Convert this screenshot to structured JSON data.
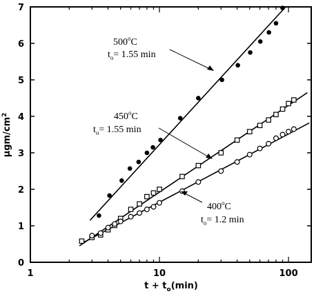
{
  "chart_data": {
    "type": "scatter",
    "x_scale": "log",
    "xlim": [
      1,
      150
    ],
    "ylim": [
      0,
      7
    ],
    "xlabel_main": "t + t",
    "xlabel_sub": "o",
    "xlabel_tail": "(min)",
    "ylabel_pre": "μgm/cm",
    "ylabel_sup": "2",
    "x_ticks": [
      {
        "value": 1,
        "label": "1"
      },
      {
        "value": 10,
        "label": "10"
      },
      {
        "value": 100,
        "label": "100"
      }
    ],
    "y_ticks": [
      {
        "value": 0,
        "label": "0"
      },
      {
        "value": 1,
        "label": "1"
      },
      {
        "value": 2,
        "label": "2"
      },
      {
        "value": 3,
        "label": "3"
      },
      {
        "value": 4,
        "label": "4"
      },
      {
        "value": 5,
        "label": "5"
      },
      {
        "value": 6,
        "label": "6"
      },
      {
        "value": 7,
        "label": "7"
      }
    ],
    "grid": false,
    "series": [
      {
        "name": "500°C",
        "marker": "filled-circle",
        "x": [
          3.4,
          4.1,
          5.1,
          5.9,
          6.9,
          8.0,
          8.9,
          10.2,
          14.5,
          20.0,
          30.5,
          40.5,
          50.5,
          60.5,
          70.5,
          80.0,
          90.0
        ],
        "y": [
          1.28,
          1.83,
          2.24,
          2.57,
          2.75,
          3.0,
          3.15,
          3.35,
          3.95,
          4.5,
          5.0,
          5.4,
          5.75,
          6.05,
          6.3,
          6.55,
          6.97
        ],
        "fit": {
          "x": [
            2.9,
            95
          ],
          "y": [
            1.15,
            7.0
          ]
        }
      },
      {
        "name": "450°C",
        "marker": "open-square",
        "x": [
          2.5,
          3.0,
          3.5,
          4.0,
          4.5,
          5.0,
          6.0,
          7.0,
          8.0,
          9.0,
          10.0,
          15.0,
          20.0,
          30.0,
          40.0,
          50.0,
          60.0,
          70.0,
          80.0,
          90.0,
          100.0,
          110.0
        ],
        "y": [
          0.58,
          0.68,
          0.75,
          0.89,
          1.01,
          1.2,
          1.45,
          1.6,
          1.8,
          1.9,
          2.0,
          2.35,
          2.65,
          3.0,
          3.35,
          3.58,
          3.75,
          3.9,
          4.05,
          4.2,
          4.35,
          4.45
        ],
        "fit": {
          "x": [
            2.4,
            140
          ],
          "y": [
            0.45,
            4.65
          ]
        }
      },
      {
        "name": "400°C",
        "marker": "open-circle",
        "x": [
          3.0,
          3.5,
          4.0,
          4.5,
          5.0,
          6.0,
          7.0,
          8.0,
          9.0,
          10.0,
          15.0,
          20.0,
          30.0,
          40.0,
          50.0,
          60.0,
          70.0,
          80.0,
          90.0,
          100.0,
          110.0
        ],
        "y": [
          0.73,
          0.8,
          0.95,
          1.05,
          1.12,
          1.25,
          1.35,
          1.45,
          1.52,
          1.63,
          1.95,
          2.2,
          2.5,
          2.75,
          2.95,
          3.12,
          3.25,
          3.4,
          3.5,
          3.58,
          3.65
        ],
        "fit": {
          "x": [
            2.6,
            145
          ],
          "y": [
            0.55,
            3.82
          ]
        }
      }
    ],
    "annotations": [
      {
        "temp": "500",
        "deg": "o",
        "unit": "C",
        "t_sym": "t",
        "t_sub": "o",
        "t_value": "= 1.55 min"
      },
      {
        "temp": "450",
        "deg": "o",
        "unit": "C",
        "t_sym": "t",
        "t_sub": "o",
        "t_value": "= 1.55 min"
      },
      {
        "temp": "400",
        "deg": "o",
        "unit": "C",
        "t_sym": "t",
        "t_sub": "o",
        "t_value": "= 1.2 min"
      }
    ]
  }
}
